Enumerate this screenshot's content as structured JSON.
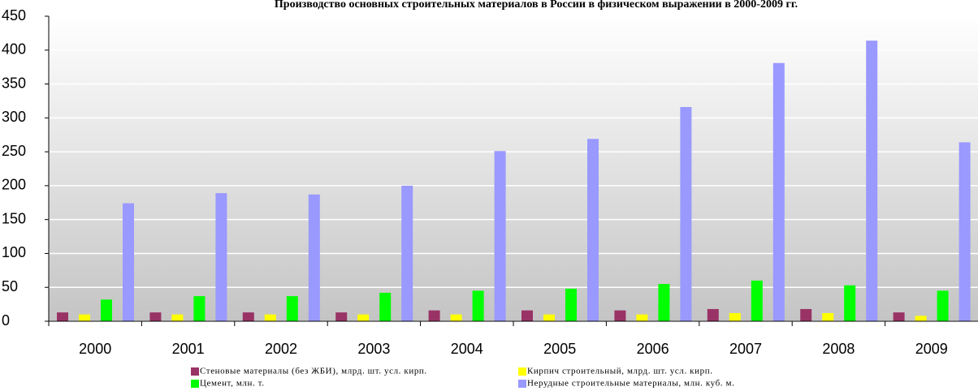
{
  "chart_data": {
    "type": "bar",
    "title": "Производство основных строительных материалов в России в физическом выражении в 2000-2009 гг.",
    "categories": [
      "2000",
      "2001",
      "2002",
      "2003",
      "2004",
      "2005",
      "2006",
      "2007",
      "2008",
      "2009"
    ],
    "series": [
      {
        "name": "Стеновые материалы (без ЖБИ), млрд. шт. усл. кирп.",
        "color": "#993366",
        "values": [
          13,
          13,
          13,
          13,
          16,
          16,
          16,
          18,
          18,
          13
        ]
      },
      {
        "name": "Кирпич строительный, млрд. шт. усл. кирп.",
        "color": "#ffff00",
        "values": [
          10,
          10,
          10,
          10,
          10,
          10,
          10,
          12,
          12,
          8
        ]
      },
      {
        "name": "Цемент, млн. т.",
        "color": "#00ff00",
        "values": [
          32,
          37,
          37,
          42,
          45,
          48,
          55,
          60,
          53,
          45
        ]
      },
      {
        "name": "Нерудные строительные материалы, млн. куб. м.",
        "color": "#9999ff",
        "values": [
          174,
          189,
          187,
          200,
          251,
          269,
          316,
          381,
          414,
          264
        ]
      }
    ],
    "ylim": [
      0,
      450
    ],
    "yticks": [
      0,
      50,
      100,
      150,
      200,
      250,
      300,
      350,
      400,
      450
    ],
    "grid": true
  }
}
